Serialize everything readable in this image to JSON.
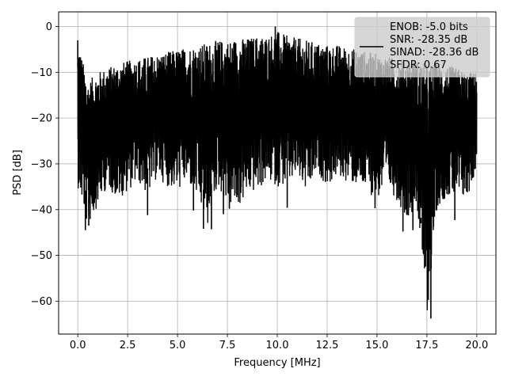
{
  "chart_data": {
    "type": "line",
    "xlabel": "Frequency [MHz]",
    "ylabel": "PSD [dB]",
    "xlim": [
      -0.96,
      20.96
    ],
    "ylim": [
      -67.2,
      3.2
    ],
    "x_ticks": [
      0.0,
      2.5,
      5.0,
      7.5,
      10.0,
      12.5,
      15.0,
      17.5,
      20.0
    ],
    "x_tick_labels": [
      "0.0",
      "2.5",
      "5.0",
      "7.5",
      "10.0",
      "12.5",
      "15.0",
      "17.5",
      "20.0"
    ],
    "y_ticks": [
      0,
      -10,
      -20,
      -30,
      -40,
      -50,
      -60
    ],
    "y_tick_labels": [
      "0",
      "−10",
      "−20",
      "−30",
      "−40",
      "−50",
      "−60"
    ],
    "grid": true,
    "legend_position": "top-right",
    "line_color": "#000000",
    "legend": {
      "lines": [
        "ENOB: -5.0 bits",
        "SNR: -28.35 dB",
        "SINAD: -28.36 dB",
        "SFDR: 0.67"
      ]
    },
    "series": [
      {
        "x": [
          0.0,
          0.5,
          1.0,
          1.5,
          2.0,
          2.5,
          3.0,
          3.5,
          4.0,
          4.5,
          5.0,
          5.5,
          6.0,
          6.5,
          7.0,
          7.5,
          8.0,
          8.5,
          9.0,
          9.5,
          10.0,
          10.5,
          11.0,
          11.5,
          12.0,
          12.5,
          13.0,
          13.5,
          14.0,
          14.5,
          15.0,
          15.5,
          16.0,
          16.5,
          17.0,
          17.5,
          18.0,
          18.5,
          19.0,
          19.5,
          20.0
        ],
        "upper": [
          -3,
          -12,
          -10,
          -9,
          -8,
          -7.5,
          -7,
          -6.5,
          -6,
          -5.5,
          -5,
          -4.5,
          -4,
          -3.5,
          -3,
          -3,
          -2.5,
          -2.5,
          -2,
          -2,
          -1,
          -2,
          -2.5,
          -3,
          -3.5,
          -4,
          -4,
          -4.5,
          -5,
          -5.5,
          -6,
          -6.5,
          -7,
          -7,
          -7.5,
          -8,
          -8,
          -8.5,
          -9,
          -10,
          -10
        ],
        "lower": [
          -35,
          -44,
          -39,
          -35,
          -38,
          -36,
          -34,
          -37,
          -33,
          -35,
          -36,
          -34,
          -38,
          -44,
          -35,
          -39,
          -40,
          -37,
          -36,
          -34,
          -35,
          -35,
          -33,
          -37,
          -32,
          -35,
          -33,
          -34,
          -35,
          -36,
          -38,
          -35,
          -38,
          -42,
          -39,
          -64,
          -40,
          -37,
          -38,
          -38,
          -31
        ]
      }
    ],
    "spikes": [
      {
        "x": 0.0,
        "y": -3
      },
      {
        "x": 0.38,
        "y": -44.5
      },
      {
        "x": 0.55,
        "y": -43.5
      },
      {
        "x": 2.2,
        "y": -36
      },
      {
        "x": 3.5,
        "y": -41.2
      },
      {
        "x": 5.8,
        "y": -40.2
      },
      {
        "x": 6.3,
        "y": -44.2
      },
      {
        "x": 6.7,
        "y": -44.3
      },
      {
        "x": 7.3,
        "y": -41.0
      },
      {
        "x": 7.6,
        "y": -39.8
      },
      {
        "x": 9.9,
        "y": 0.0
      },
      {
        "x": 10.5,
        "y": -39.6
      },
      {
        "x": 14.9,
        "y": -39.7
      },
      {
        "x": 16.3,
        "y": -44.8
      },
      {
        "x": 16.8,
        "y": -44.5
      },
      {
        "x": 17.2,
        "y": -41.8
      },
      {
        "x": 17.7,
        "y": -63.8
      },
      {
        "x": 18.9,
        "y": -42.3
      },
      {
        "x": 19.5,
        "y": -31.5
      }
    ]
  }
}
